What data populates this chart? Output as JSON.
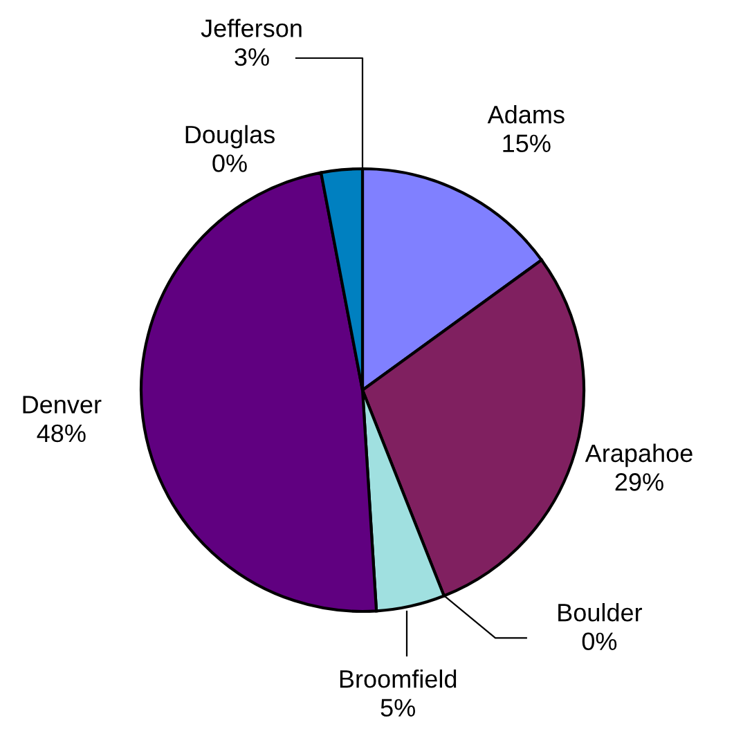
{
  "chart_data": {
    "type": "pie",
    "categories": [
      "Adams",
      "Arapahoe",
      "Boulder",
      "Broomfield",
      "Denver",
      "Douglas",
      "Jefferson"
    ],
    "values": [
      15,
      29,
      0,
      5,
      48,
      0,
      3
    ],
    "colors": [
      "#8080ff",
      "#802060",
      "#ffffcc",
      "#a0e0e0",
      "#600080",
      "#ff8080",
      "#0080c0"
    ],
    "value_labels": [
      "15%",
      "29%",
      "0%",
      "5%",
      "48%",
      "0%",
      "3%"
    ]
  }
}
